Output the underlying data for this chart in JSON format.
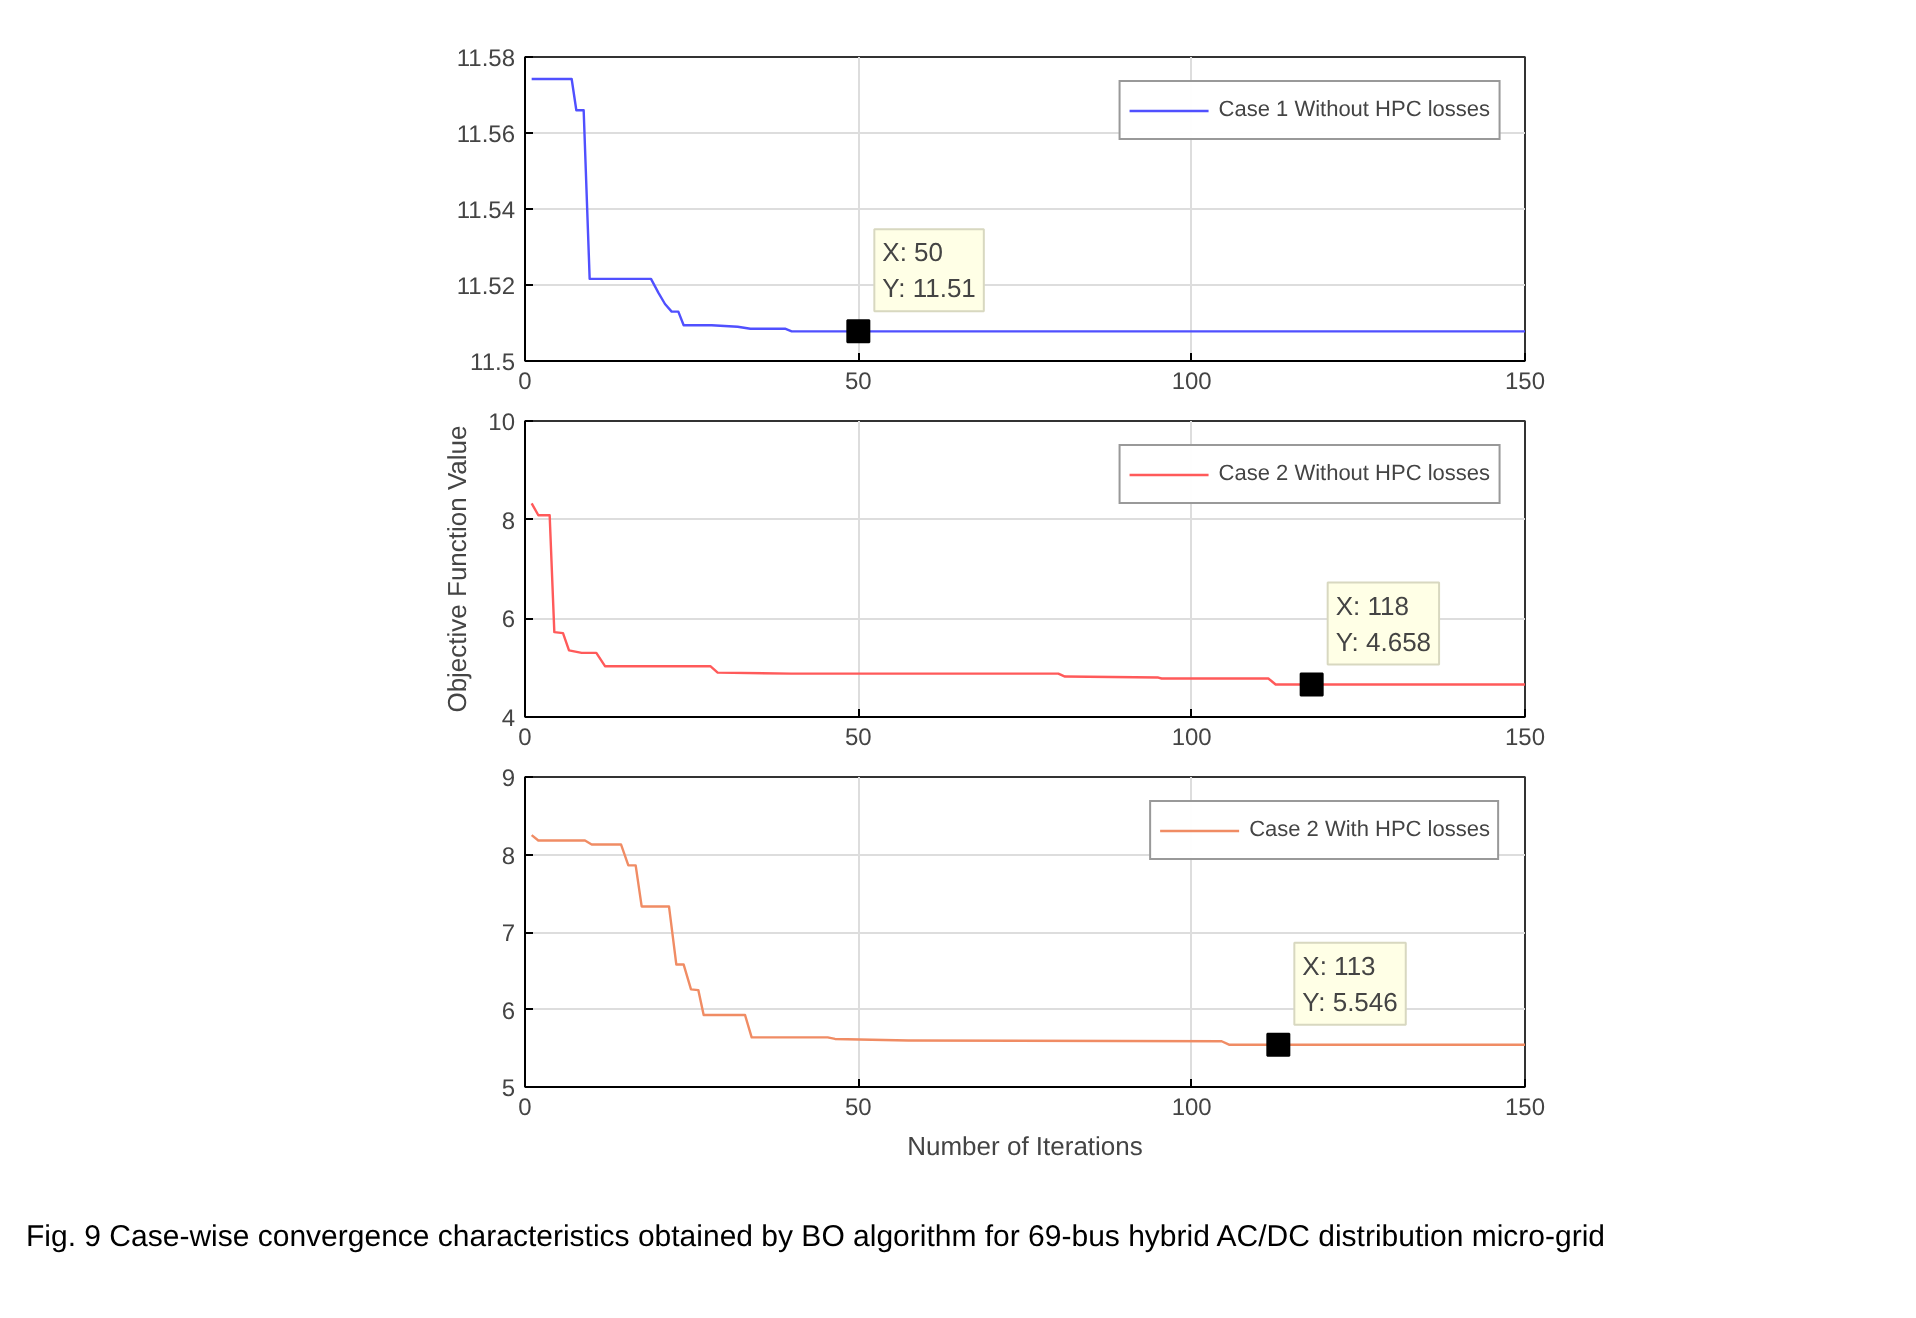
{
  "chart_data": [
    {
      "type": "line",
      "xlim": [
        0,
        150
      ],
      "xticks": [
        0,
        50,
        100,
        150
      ],
      "ylim": [
        11.5,
        11.58
      ],
      "yticks": [
        11.5,
        11.52,
        11.54,
        11.56,
        11.58
      ],
      "grid": true,
      "legend": "top right",
      "series": [
        {
          "name": "Case 1 Without HPC losses",
          "color": "#5050ff",
          "x": [
            1,
            7,
            7.7,
            8.8,
            9.7,
            18.9,
            20,
            21,
            22,
            23,
            23.8,
            28,
            31.9,
            33.8,
            39,
            40,
            150
          ],
          "values": [
            11.5742,
            11.5742,
            11.566,
            11.566,
            11.5216,
            11.5216,
            11.518,
            11.515,
            11.513,
            11.513,
            11.5094,
            11.5094,
            11.509,
            11.5085,
            11.5085,
            11.5078,
            11.5078
          ]
        }
      ],
      "annotations": [
        {
          "text": "X: 50\nY: 11.51",
          "x": 50,
          "y": 11.5078
        }
      ]
    },
    {
      "type": "line",
      "xlim": [
        0,
        150
      ],
      "xticks": [
        0,
        50,
        100,
        150
      ],
      "ylim": [
        4,
        10
      ],
      "yticks": [
        4,
        6,
        8,
        10
      ],
      "grid": true,
      "legend": "top right",
      "ylabel": "Objective Function Value",
      "series": [
        {
          "name": "Case 2 Without HPC losses",
          "color": "#ff5a5a",
          "x": [
            1,
            2,
            3.7,
            4.4,
            5.7,
            6.6,
            8.5,
            10.7,
            12,
            27.8,
            28.9,
            39.9,
            80,
            81,
            95,
            95.5,
            111.5,
            112.6,
            150
          ],
          "values": [
            8.33,
            8.09,
            8.09,
            5.72,
            5.7,
            5.35,
            5.3,
            5.3,
            5.03,
            5.03,
            4.9,
            4.88,
            4.88,
            4.82,
            4.8,
            4.78,
            4.78,
            4.658,
            4.658
          ]
        }
      ],
      "annotations": [
        {
          "text": "X: 118\nY: 4.658",
          "x": 118,
          "y": 4.658
        }
      ]
    },
    {
      "type": "line",
      "xlim": [
        0,
        150
      ],
      "xticks": [
        0,
        50,
        100,
        150
      ],
      "ylim": [
        5,
        9
      ],
      "yticks": [
        5,
        6,
        7,
        8,
        9
      ],
      "grid": true,
      "legend": "top right",
      "xlabel": "Number of Iterations",
      "series": [
        {
          "name": "Case 2 With HPC losses",
          "color": "#f08c64",
          "x": [
            1,
            2,
            9,
            10,
            14.4,
            15.5,
            16.6,
            17.5,
            21.6,
            22.7,
            23.8,
            24.9,
            26,
            26.8,
            33,
            34,
            45.4,
            46.5,
            57.5,
            104.5,
            105.6,
            150
          ],
          "values": [
            8.25,
            8.18,
            8.18,
            8.13,
            8.13,
            7.86,
            7.86,
            7.33,
            7.33,
            6.58,
            6.58,
            6.26,
            6.25,
            5.93,
            5.93,
            5.64,
            5.64,
            5.62,
            5.6,
            5.59,
            5.546,
            5.546
          ]
        }
      ],
      "annotations": [
        {
          "text": "X: 113\nY: 5.546",
          "x": 113,
          "y": 5.546
        },
        "Fig. 9  Case-wise convergence characteristics obtained by BO algorithm for 69-bus hybrid AC/DC distribution micro-grid"
      ]
    }
  ]
}
